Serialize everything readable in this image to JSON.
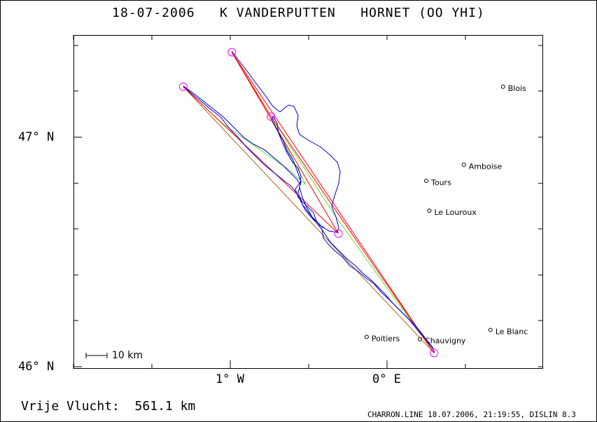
{
  "title": "18-07-2006   K VANDERPUTTEN   HORNET (OO YHI)",
  "y_labels": [
    "47° N",
    "46° N"
  ],
  "x_labels": [
    "1° W",
    "0° E"
  ],
  "scale_label": "10 km",
  "footer_distance": "Vrije Vlucht:  561.1 km",
  "footer_credit": "CHARRON.LINE 18.07.2006, 21:19:55, DISLIN 8.3",
  "cities": [
    {
      "name": "Blois",
      "lon": 0.74,
      "lat": 47.22
    },
    {
      "name": "Amboise",
      "lon": 0.49,
      "lat": 46.88
    },
    {
      "name": "Tours",
      "lon": 0.25,
      "lat": 46.81
    },
    {
      "name": "Le Louroux",
      "lon": 0.27,
      "lat": 46.68
    },
    {
      "name": "Poitiers",
      "lon": -0.13,
      "lat": 46.13
    },
    {
      "name": "Chauvigny",
      "lon": 0.21,
      "lat": 46.12
    },
    {
      "name": "Le Blanc",
      "lon": 0.66,
      "lat": 46.16
    }
  ],
  "turnpoints": [
    {
      "lon": -1.3,
      "lat": 47.22
    },
    {
      "lon": -0.99,
      "lat": 47.37
    },
    {
      "lon": -0.74,
      "lat": 47.09
    },
    {
      "lon": -0.31,
      "lat": 46.58
    },
    {
      "lon": 0.3,
      "lat": 46.06
    }
  ],
  "colors": {
    "track": "#0000cc",
    "route_red": "#ff0000",
    "route_green": "#66dd33",
    "route_brown": "#b06010",
    "turnpoint": "#ff00ff",
    "frame": "#000000"
  }
}
